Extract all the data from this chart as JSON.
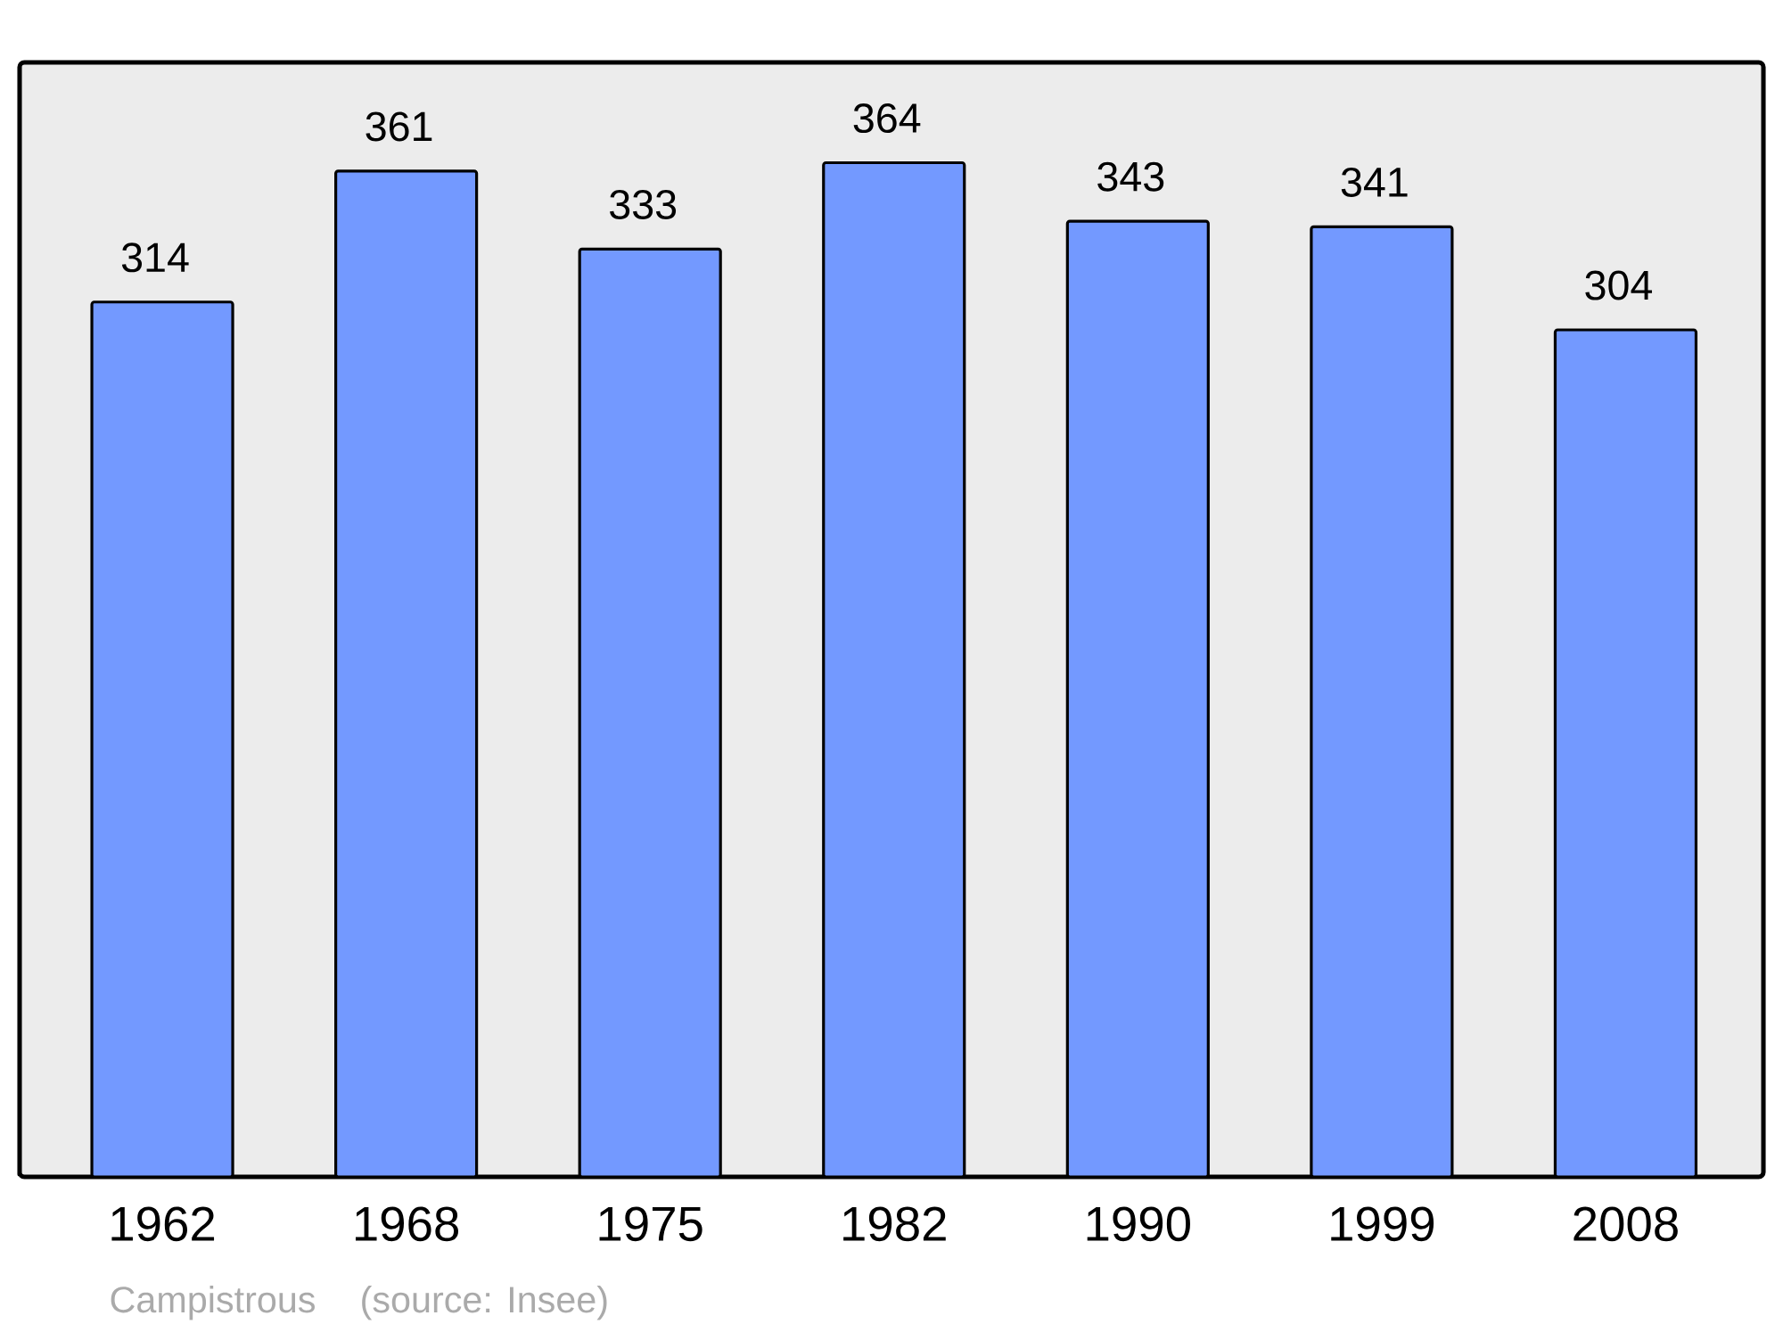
{
  "chart_data": {
    "type": "bar",
    "categories": [
      "1962",
      "1968",
      "1975",
      "1982",
      "1990",
      "1999",
      "2008"
    ],
    "values": [
      314,
      361,
      333,
      364,
      343,
      341,
      304
    ],
    "color": "#7399ff",
    "ylim": [
      0,
      400
    ],
    "data_labels": true,
    "tick_labels": "x",
    "annotations": [
      "Campistrous",
      "(source: Insee)"
    ]
  }
}
